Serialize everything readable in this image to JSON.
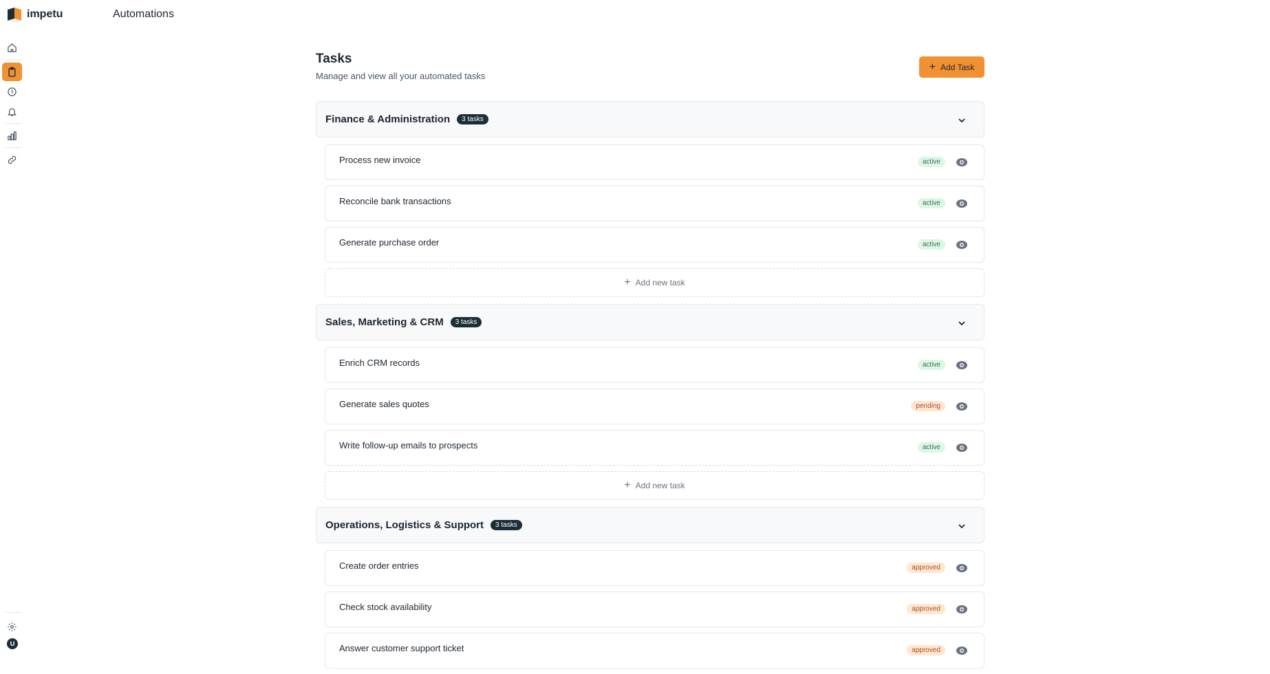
{
  "app": {
    "name": "impetu",
    "section": "Automations"
  },
  "sidebar": {
    "items": [
      {
        "name": "home",
        "active": false
      },
      {
        "name": "tasks",
        "active": true
      },
      {
        "name": "history",
        "active": false
      },
      {
        "name": "notifications",
        "active": false
      },
      {
        "name": "analytics",
        "active": false
      },
      {
        "name": "integrations",
        "active": false
      }
    ],
    "avatar_initial": "U"
  },
  "page": {
    "title": "Tasks",
    "subtitle": "Manage and view all your automated tasks",
    "add_task_label": "Add Task",
    "add_new_task_label": "Add new task"
  },
  "colors": {
    "accent": "#f09232",
    "dark": "#1b2e36"
  },
  "groups": [
    {
      "title": "Finance & Administration",
      "count": "3 tasks",
      "tasks": [
        {
          "name": "Process new invoice",
          "status": "active"
        },
        {
          "name": "Reconcile bank transactions",
          "status": "active"
        },
        {
          "name": "Generate purchase order",
          "status": "active"
        }
      ]
    },
    {
      "title": "Sales, Marketing & CRM",
      "count": "3 tasks",
      "tasks": [
        {
          "name": "Enrich CRM records",
          "status": "active"
        },
        {
          "name": "Generate sales quotes",
          "status": "pending"
        },
        {
          "name": "Write follow-up emails to prospects",
          "status": "active"
        }
      ]
    },
    {
      "title": "Operations, Logistics & Support",
      "count": "3 tasks",
      "tasks": [
        {
          "name": "Create order entries",
          "status": "approved"
        },
        {
          "name": "Check stock availability",
          "status": "approved"
        },
        {
          "name": "Answer customer support ticket",
          "status": "approved"
        }
      ]
    }
  ]
}
